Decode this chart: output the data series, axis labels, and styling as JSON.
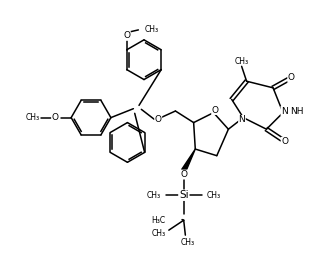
{
  "background": "#ffffff",
  "line_color": "#000000",
  "line_width": 1.1,
  "font_size": 6.5,
  "figsize": [
    3.31,
    2.7
  ],
  "dpi": 100,
  "xlim": [
    0,
    10
  ],
  "ylim": [
    0,
    8.15
  ]
}
